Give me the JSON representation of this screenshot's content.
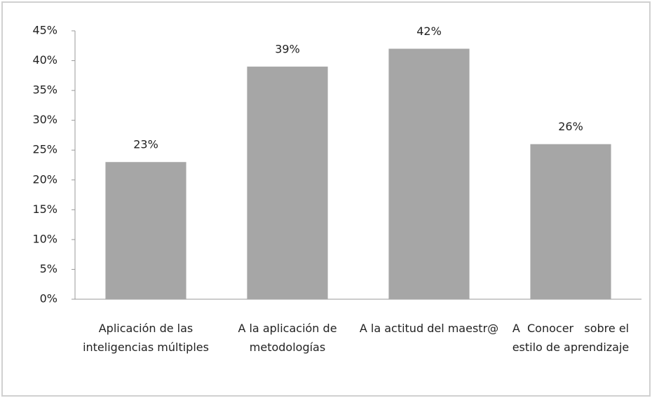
{
  "chart_data": {
    "type": "bar",
    "categories": [
      "Aplicación de las inteligencias múltiples",
      "A la aplicación de metodologías",
      "A la actitud del maestr@",
      "A  Conocer   sobre el estilo de aprendizaje"
    ],
    "values": [
      23,
      39,
      42,
      26
    ],
    "value_labels": [
      "23%",
      "39%",
      "42%",
      "26%"
    ],
    "color": "#a6a6a6",
    "ylim": [
      0,
      45
    ],
    "yticks": [
      {
        "value": 0,
        "label": "0%"
      },
      {
        "value": 5,
        "label": "5%"
      },
      {
        "value": 10,
        "label": "10%"
      },
      {
        "value": 15,
        "label": "15%"
      },
      {
        "value": 20,
        "label": "20%"
      },
      {
        "value": 25,
        "label": "25%"
      },
      {
        "value": 30,
        "label": "30%"
      },
      {
        "value": 35,
        "label": "35%"
      },
      {
        "value": 40,
        "label": "40%"
      },
      {
        "value": 45,
        "label": "45%"
      }
    ],
    "grid": false
  }
}
